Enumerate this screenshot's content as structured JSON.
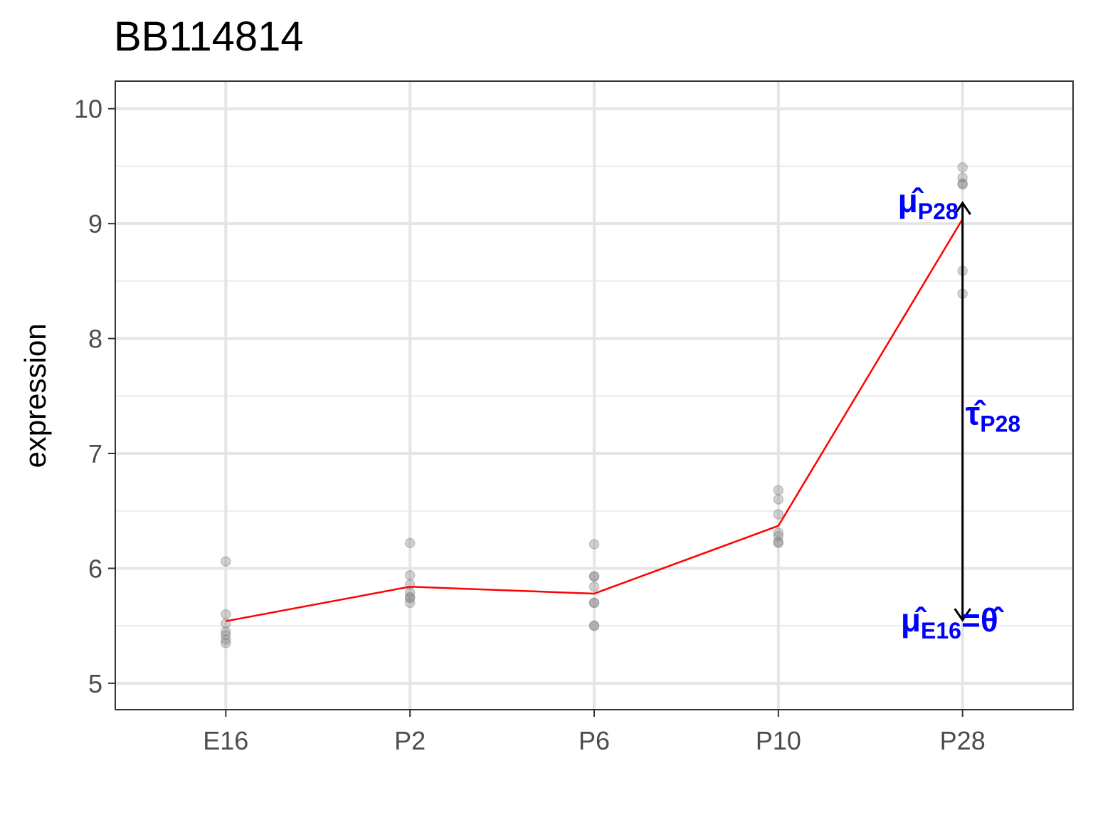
{
  "chart_data": {
    "type": "scatter",
    "title": "BB114814",
    "xlabel": "",
    "ylabel": "expression",
    "categories": [
      "E16",
      "P2",
      "P6",
      "P10",
      "P28"
    ],
    "ylim": [
      4.77,
      10.24
    ],
    "yticks": [
      5,
      6,
      7,
      8,
      9,
      10
    ],
    "grid": true,
    "points": {
      "E16": [
        6.06,
        5.6,
        5.52,
        5.45,
        5.42,
        5.38,
        5.35
      ],
      "P2": [
        6.22,
        5.94,
        5.86,
        5.79,
        5.75,
        5.74,
        5.7
      ],
      "P6": [
        6.21,
        5.93,
        5.93,
        5.84,
        5.7,
        5.7,
        5.5,
        5.5
      ],
      "P10": [
        6.68,
        6.6,
        6.47,
        6.31,
        6.28,
        6.23,
        6.22
      ],
      "P28": [
        9.49,
        9.4,
        9.35,
        9.34,
        8.59,
        8.39
      ]
    },
    "mean_line": {
      "values": [
        5.54,
        5.84,
        5.78,
        6.37,
        9.04
      ],
      "color": "#ff0000"
    },
    "point_color": "#808080",
    "arrow": {
      "category": "P28",
      "from": 5.55,
      "to": 9.18,
      "color": "#000000"
    },
    "annotations": [
      {
        "text": "μ̂",
        "sub": "P28",
        "category": "P28",
        "y": 9.1
      },
      {
        "text": "τ̂",
        "sub": "P28",
        "category": "P28",
        "y": 7.25
      },
      {
        "text": "μ̂",
        "sub": "E16",
        "suffix": "=θ̂",
        "category": "P28",
        "y": 5.45
      }
    ],
    "annotation_color": "#0000ff"
  }
}
